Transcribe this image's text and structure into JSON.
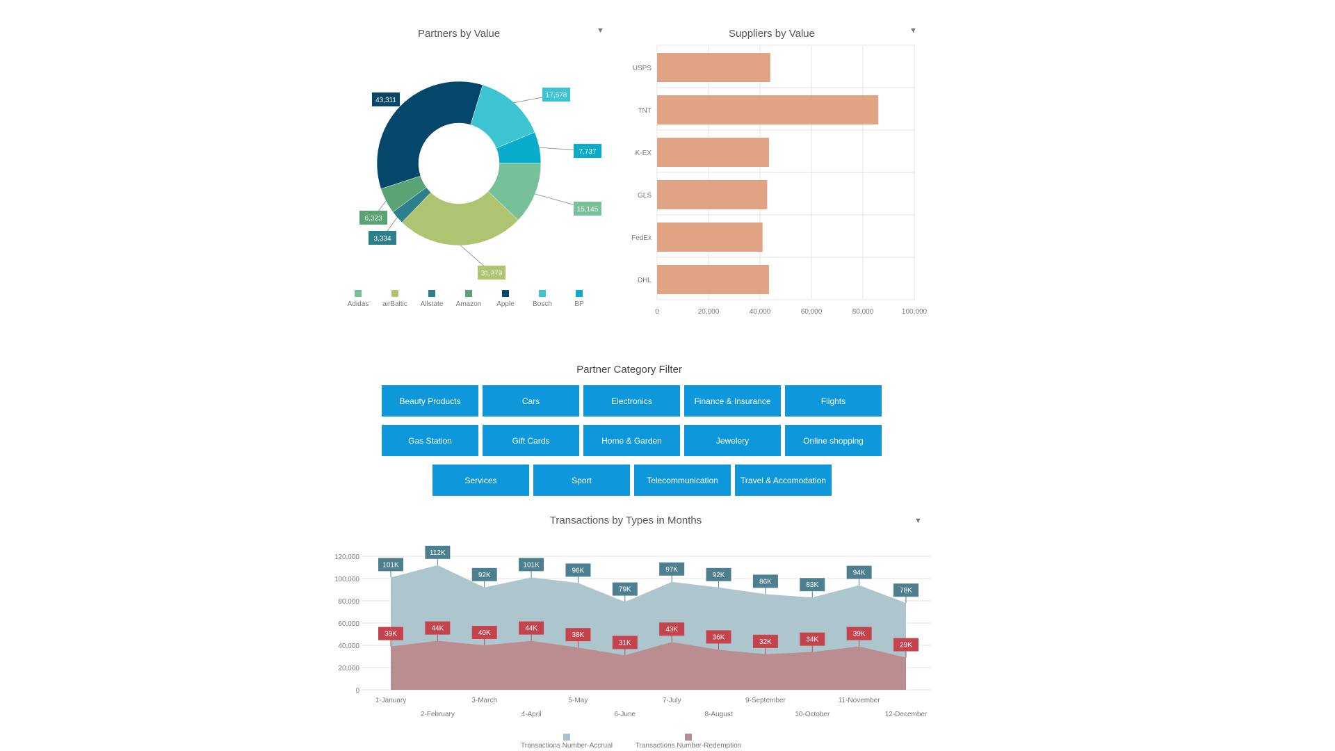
{
  "donut": {
    "title": "Partners by Value",
    "filter_icon": "filter-icon"
  },
  "bars": {
    "title": "Suppliers by Value",
    "filter_icon": "filter-icon"
  },
  "category_filter": {
    "title": "Partner Category Filter",
    "buttons": [
      "Beauty Products",
      "Cars",
      "Electronics",
      "Finance & Insurance",
      "Flights",
      "Gas Station",
      "Gift Cards",
      "Home & Garden",
      "Jewelery",
      "Online shopping",
      "Services",
      "Sport",
      "Telecommunication",
      "Travel & Accomodation"
    ],
    "button_color": "#0f97db"
  },
  "area": {
    "title": "Transactions by Types in Months",
    "filter_icon": "filter-icon"
  },
  "chart_data": [
    {
      "type": "pie",
      "title": "Partners by Value",
      "legend_position": "bottom",
      "slices": [
        {
          "label": "Adidas",
          "value": 15145,
          "value_label": "15,145",
          "color": "#77c198"
        },
        {
          "label": "airBaltic",
          "value": 31279,
          "value_label": "31,279",
          "color": "#aec470"
        },
        {
          "label": "Allstate",
          "value": 3334,
          "value_label": "3,334",
          "color": "#2e7f8c"
        },
        {
          "label": "Amazon",
          "value": 6323,
          "value_label": "6,323",
          "color": "#5aa374"
        },
        {
          "label": "Apple",
          "value": 43311,
          "value_label": "43,311",
          "color": "#05476b"
        },
        {
          "label": "Bosch",
          "value": 17578,
          "value_label": "17,578",
          "color": "#3cc4d3"
        },
        {
          "label": "BP",
          "value": 7737,
          "value_label": "7,737",
          "color": "#0aaccc"
        }
      ]
    },
    {
      "type": "bar",
      "orientation": "horizontal",
      "title": "Suppliers by Value",
      "categories": [
        "USPS",
        "TNT",
        "K-EX",
        "GLS",
        "FedEx",
        "DHL"
      ],
      "values": [
        44000,
        86000,
        43500,
        42800,
        41000,
        43500
      ],
      "xlim": [
        0,
        100000
      ],
      "ticks": [
        "0",
        "20,000",
        "40,000",
        "60,000",
        "80,000",
        "100,000"
      ],
      "grid": true,
      "color": "#e0a484"
    },
    {
      "type": "area",
      "title": "Transactions by Types in Months",
      "categories": [
        "1-January",
        "2-February",
        "3-March",
        "4-April",
        "5-May",
        "6-June",
        "7-July",
        "8-August",
        "9-September",
        "10-October",
        "11-November",
        "12-December"
      ],
      "ylim": [
        0,
        120000
      ],
      "ticks": [
        "0",
        "20,000",
        "40,000",
        "60,000",
        "80,000",
        "100,000",
        "120,000"
      ],
      "legend_position": "bottom",
      "series": [
        {
          "name": "Transactions Number-Accrual",
          "color": "#a9c3cb",
          "label_color": "#4d7f8f",
          "values": [
            101000,
            112000,
            92000,
            101000,
            96000,
            79000,
            97000,
            92000,
            86000,
            83000,
            94000,
            78000
          ],
          "labels": [
            "101K",
            "112K",
            "92K",
            "101K",
            "96K",
            "79K",
            "97K",
            "92K",
            "86K",
            "83K",
            "94K",
            "78K"
          ]
        },
        {
          "name": "Transactions Number-Redemption",
          "color": "#bb8a8d",
          "label_color": "#c4434d",
          "values": [
            39000,
            44000,
            40000,
            44000,
            38000,
            31000,
            43000,
            36000,
            32000,
            34000,
            39000,
            29000
          ],
          "labels": [
            "39K",
            "44K",
            "40K",
            "44K",
            "38K",
            "31K",
            "43K",
            "36K",
            "32K",
            "34K",
            "39K",
            "29K"
          ]
        }
      ]
    }
  ]
}
